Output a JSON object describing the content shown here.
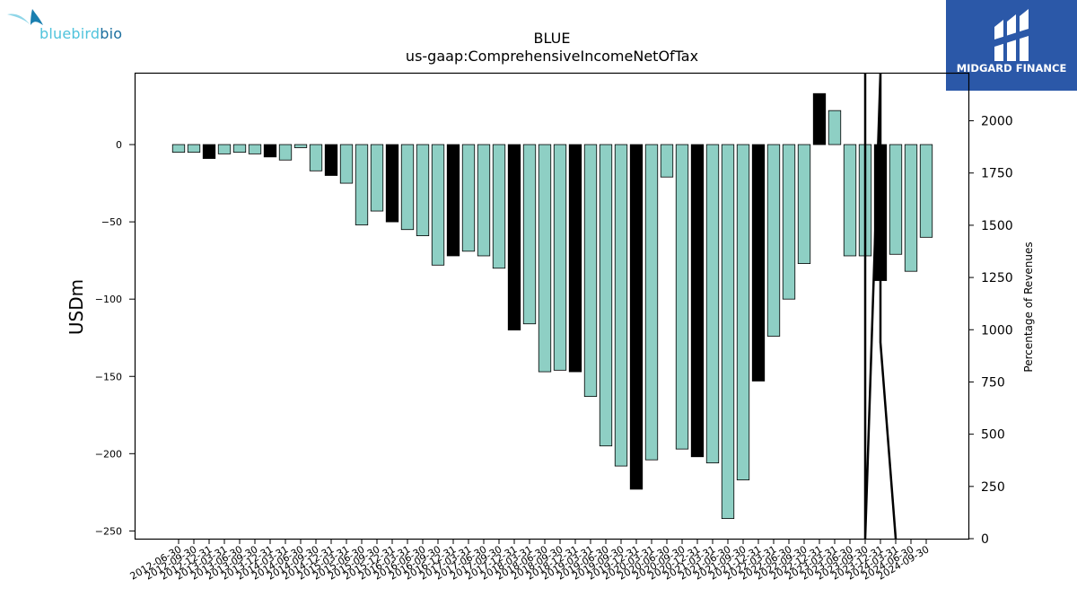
{
  "logos": {
    "left_text_a": "bluebird",
    "left_text_b": "bio",
    "right_text": "MIDGARD FINANCE"
  },
  "chart_data": {
    "type": "bar",
    "title": "BLUE",
    "subtitle": "us-gaap:ComprehensiveIncomeNetOfTax",
    "ylabel": "USDm",
    "ylabel_right": "Percentage of Revenues",
    "ylim": [
      -255,
      46.5
    ],
    "ylim_right": [
      0,
      2230
    ],
    "yticks": [
      0,
      -50,
      -100,
      -150,
      -200,
      -250
    ],
    "yticks_right": [
      0,
      250,
      500,
      750,
      1000,
      1250,
      1500,
      1750,
      2000
    ],
    "colors": {
      "quarter": "#8ecfc4",
      "fiscal_year": "#000000",
      "line": "#000000"
    },
    "categories": [
      "2012-06-30",
      "2012-09-30",
      "2012-12-31",
      "2013-03-31",
      "2013-06-30",
      "2013-09-30",
      "2013-12-31",
      "2014-03-31",
      "2014-06-30",
      "2014-09-30",
      "2014-12-31",
      "2015-03-31",
      "2015-06-30",
      "2015-09-30",
      "2015-12-31",
      "2016-03-31",
      "2016-06-30",
      "2016-09-30",
      "2016-12-31",
      "2017-03-31",
      "2017-06-30",
      "2017-09-30",
      "2017-12-31",
      "2018-03-31",
      "2018-06-30",
      "2018-09-30",
      "2018-12-31",
      "2019-03-31",
      "2019-06-30",
      "2019-09-30",
      "2019-12-31",
      "2020-03-31",
      "2020-06-30",
      "2020-09-30",
      "2020-12-31",
      "2021-03-31",
      "2021-06-30",
      "2021-09-30",
      "2021-12-31",
      "2022-03-31",
      "2022-06-30",
      "2022-09-30",
      "2022-12-31",
      "2023-03-31",
      "2023-06-30",
      "2023-09-30",
      "2023-12-31",
      "2024-03-31",
      "2024-06-30",
      "2024-09-30"
    ],
    "xtick_labels": [
      "2012-06-30",
      "2012-09-30",
      "2012-12-31",
      "2013-03-31",
      "2013-06-30",
      "2013-09-30",
      "2013-12-31",
      "2014-03-31",
      "2014-06-30",
      "2014-09-30",
      "2014-12-31",
      "2015-03-31",
      "2015-06-30",
      "2015-09-30",
      "2015-12-31",
      "2016-03-31",
      "2016-06-30",
      "2016-09-30",
      "2016-12-31",
      "2017-03-31",
      "2017-06-30",
      "2017-09-30",
      "2017-12-31",
      "2018-03-31",
      "2018-06-30",
      "2018-09-30",
      "2018-12-31",
      "2019-03-31",
      "2019-06-30",
      "2019-09-30",
      "2019-12-31",
      "2020-03-31",
      "2020-06-30",
      "2020-09-30",
      "2020-12-31",
      "2021-03-31",
      "2021-06-30",
      "2021-09-30",
      "2021-12-31",
      "2022-03-31",
      "2022-06-30",
      "2022-09-30",
      "2022-12-31",
      "2023-03-31",
      "2023-06-30",
      "2023-09-30",
      "2023-12-31",
      "2024-03-31",
      "2024-06-30",
      "2024-09-30"
    ],
    "values": [
      -5,
      -5,
      -9,
      -6,
      -5,
      -6,
      -8,
      -10,
      -2,
      -17,
      -20,
      -25,
      -52,
      -43,
      -50,
      -55,
      -59,
      -78,
      -72,
      -69,
      -72,
      -80,
      -120,
      -116,
      -147,
      -146,
      -147,
      -163,
      -195,
      -208,
      -223,
      -204,
      -21,
      -197,
      -202,
      -206,
      -242,
      -217,
      -153,
      -124,
      -100,
      -77,
      33,
      22,
      -72,
      -72,
      -88,
      -71,
      -82,
      -60
    ],
    "fiscal_year_end": [
      false,
      false,
      true,
      false,
      false,
      false,
      true,
      false,
      false,
      false,
      true,
      false,
      false,
      false,
      true,
      false,
      false,
      false,
      true,
      false,
      false,
      false,
      true,
      false,
      false,
      false,
      true,
      false,
      false,
      false,
      true,
      false,
      false,
      false,
      true,
      false,
      false,
      false,
      true,
      false,
      false,
      false,
      true,
      false,
      false,
      false,
      true,
      false,
      false,
      false
    ],
    "pct_of_revenues_line": [
      {
        "x": "2023-09-30",
        "y": 2230
      },
      {
        "x": "2023-09-30",
        "y": 0
      },
      {
        "x": "2023-12-31",
        "y": 2230
      },
      {
        "x": "2023-12-31",
        "y": 940
      },
      {
        "x": "2024-03-31",
        "y": 0
      }
    ],
    "grid": false,
    "legend": "none"
  }
}
